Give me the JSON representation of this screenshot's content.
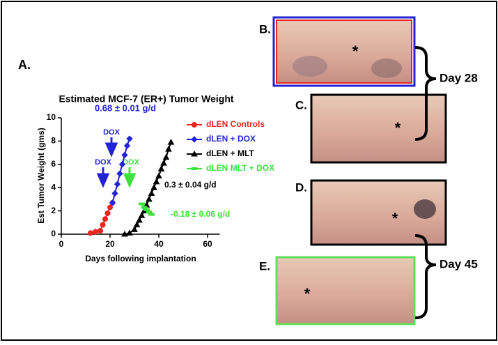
{
  "chart_data": {
    "type": "line",
    "panel_label": "A.",
    "title": "Estimated MCF-7 (ER+) Tumor Weight",
    "x_label": "Days following implantation",
    "y_label": "Est Tumor Weight (gms)",
    "xlim": [
      0,
      65
    ],
    "xticks": [
      0,
      20,
      40,
      60
    ],
    "ylim": [
      0,
      10
    ],
    "yticks": [
      0,
      2,
      4,
      6,
      8,
      10
    ],
    "series": [
      {
        "name": "dLEN Controls",
        "color": "#e8251f",
        "marker": "circle",
        "x": [
          12,
          14,
          16,
          17,
          18,
          19,
          20,
          21
        ],
        "values": [
          0.1,
          0.2,
          0.3,
          0.8,
          1.3,
          1.8,
          2.3,
          2.7
        ]
      },
      {
        "name": "dLEN + DOX",
        "color": "#2323d6",
        "marker": "diamond",
        "x": [
          21,
          22,
          23,
          24,
          25,
          26,
          27,
          28
        ],
        "values": [
          2.7,
          3.5,
          4.3,
          5.2,
          6.0,
          6.8,
          7.6,
          8.2
        ]
      },
      {
        "name": "dLEN + MLT",
        "color": "#000000",
        "marker": "triangle",
        "x": [
          26,
          28,
          30,
          31,
          32,
          33,
          34,
          35,
          36,
          37,
          38,
          39,
          40,
          41,
          42,
          43,
          44,
          45
        ],
        "values": [
          0,
          0.1,
          0.4,
          0.8,
          1.2,
          1.6,
          2.0,
          2.5,
          3.0,
          3.5,
          4.0,
          4.5,
          5.0,
          5.6,
          6.1,
          6.6,
          7.3,
          7.9
        ]
      },
      {
        "name": "dLEN MLT + DOX",
        "color": "#3ee03a",
        "marker": "bar",
        "x": [
          33,
          34,
          35,
          36,
          37
        ],
        "values": [
          2.6,
          2.3,
          2.1,
          1.9,
          1.7
        ]
      }
    ],
    "annotations": [
      "0.68 ± 0.01 g/d",
      "0.3 ± 0.04 g/d",
      "-0.18 ± 0.06 g/d",
      "DOX",
      "DOX",
      "DOX"
    ]
  },
  "photos": {
    "labels": [
      "B.",
      "C.",
      "D.",
      "E."
    ],
    "asterisk": "*",
    "day_28": "Day 28",
    "day_45": "Day 45"
  }
}
